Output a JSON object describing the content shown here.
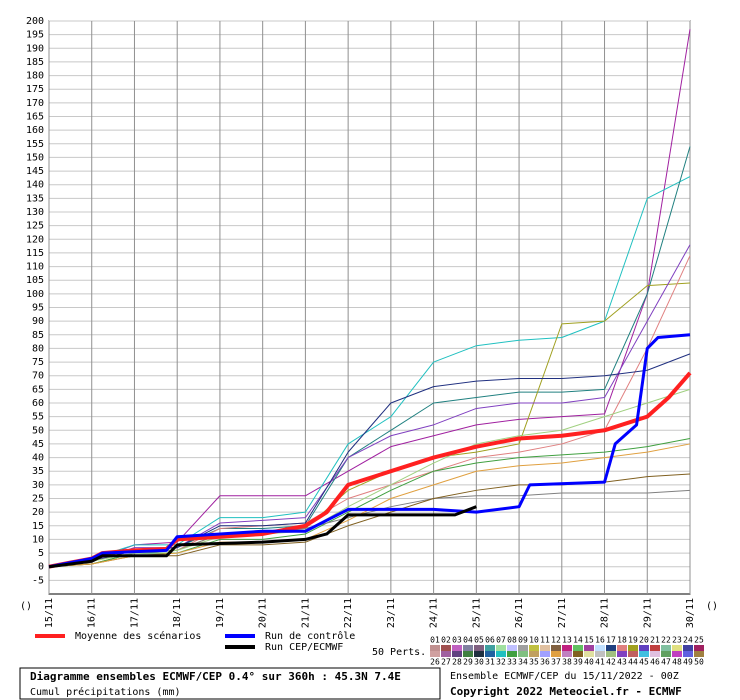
{
  "chart_data": {
    "type": "line",
    "title": "Diagramme ensembles ECMWF/CEP 0.4° sur 360h : 45.3N 7.4E",
    "subtitle": "Cumul précipitations (mm)",
    "run_info": "Ensemble ECMWF/CEP du 15/11/2022 - 00Z",
    "copyright": "Copyright 2022 Meteociel.fr - ECMWF",
    "side_label": "()",
    "perturbations_label": "50 Perts.",
    "xlim": [
      0,
      360
    ],
    "xticks": [
      {
        "value": 0,
        "label": "15/11"
      },
      {
        "value": 24,
        "label": "16/11"
      },
      {
        "value": 48,
        "label": "17/11"
      },
      {
        "value": 72,
        "label": "18/11"
      },
      {
        "value": 96,
        "label": "19/11"
      },
      {
        "value": 120,
        "label": "20/11"
      },
      {
        "value": 144,
        "label": "21/11"
      },
      {
        "value": 168,
        "label": "22/11"
      },
      {
        "value": 192,
        "label": "23/11"
      },
      {
        "value": 216,
        "label": "24/11"
      },
      {
        "value": 240,
        "label": "25/11"
      },
      {
        "value": 264,
        "label": "26/11"
      },
      {
        "value": 288,
        "label": "27/11"
      },
      {
        "value": 312,
        "label": "28/11"
      },
      {
        "value": 336,
        "label": "29/11"
      },
      {
        "value": 360,
        "label": "30/11"
      }
    ],
    "ylim": [
      -10,
      200
    ],
    "yticks": [
      -5,
      0,
      5,
      10,
      15,
      20,
      25,
      30,
      35,
      40,
      45,
      50,
      55,
      60,
      65,
      70,
      75,
      80,
      85,
      90,
      95,
      100,
      105,
      110,
      115,
      120,
      125,
      130,
      135,
      140,
      145,
      150,
      155,
      160,
      165,
      170,
      175,
      180,
      185,
      190,
      195,
      200
    ],
    "grid": true,
    "series": [
      {
        "name": "Moyenne des scénarios",
        "color": "#ff2020",
        "width": 4,
        "x": [
          0,
          12,
          24,
          30,
          48,
          66,
          72,
          96,
          120,
          144,
          156,
          168,
          192,
          216,
          240,
          264,
          288,
          312,
          336,
          348,
          360
        ],
        "values": [
          0,
          1.5,
          3,
          5,
          6,
          6.5,
          10,
          11,
          12,
          15,
          20,
          30,
          35,
          40,
          44,
          47,
          48,
          50,
          55,
          62,
          71
        ]
      },
      {
        "name": "Run de contrôle",
        "color": "#0000ff",
        "width": 3,
        "x": [
          0,
          24,
          30,
          66,
          72,
          120,
          144,
          156,
          168,
          216,
          240,
          264,
          270,
          312,
          318,
          330,
          336,
          342,
          360
        ],
        "values": [
          0,
          3,
          5,
          6,
          11,
          13,
          13,
          17,
          21,
          21,
          20,
          22,
          30,
          31,
          45,
          52,
          80,
          84,
          85
        ]
      },
      {
        "name": "Run CEP/ECMWF",
        "color": "#000000",
        "width": 3,
        "x": [
          0,
          24,
          30,
          66,
          72,
          120,
          144,
          156,
          168,
          228,
          240
        ],
        "values": [
          0,
          2,
          4,
          4,
          8,
          9,
          10,
          12,
          19,
          19,
          22
        ]
      }
    ],
    "perturbations": [
      {
        "color": "#a020a0",
        "values": [
          0,
          2,
          8,
          9,
          26,
          26,
          26,
          35,
          44,
          48,
          52,
          54,
          55,
          56,
          100,
          197
        ]
      },
      {
        "color": "#20c0c0",
        "values": [
          0,
          3,
          8,
          8,
          18,
          18,
          20,
          45,
          55,
          75,
          81,
          83,
          84,
          90,
          135,
          143
        ]
      },
      {
        "color": "#208080",
        "values": [
          0,
          2,
          6,
          7,
          14,
          14,
          15,
          40,
          50,
          60,
          62,
          64,
          64,
          65,
          100,
          154
        ]
      },
      {
        "color": "#a0a020",
        "values": [
          0,
          1,
          5,
          6,
          12,
          12,
          14,
          28,
          35,
          40,
          42,
          45,
          89,
          90,
          103,
          104
        ]
      },
      {
        "color": "#e08080",
        "values": [
          0,
          2,
          6,
          6,
          14,
          15,
          16,
          25,
          30,
          35,
          40,
          42,
          45,
          50,
          80,
          114
        ]
      },
      {
        "color": "#8040c0",
        "values": [
          0,
          2,
          7,
          7,
          16,
          17,
          18,
          40,
          48,
          52,
          58,
          60,
          60,
          62,
          90,
          118
        ]
      },
      {
        "color": "#40a040",
        "values": [
          0,
          1,
          5,
          5,
          10,
          10,
          12,
          20,
          28,
          35,
          38,
          40,
          41,
          42,
          44,
          47
        ]
      },
      {
        "color": "#808080",
        "values": [
          0,
          2,
          6,
          6,
          12,
          13,
          14,
          18,
          22,
          25,
          26,
          26,
          27,
          27,
          27,
          28
        ]
      },
      {
        "color": "#203080",
        "values": [
          0,
          2,
          6,
          7,
          15,
          15,
          16,
          42,
          60,
          66,
          68,
          69,
          69,
          70,
          72,
          78
        ]
      },
      {
        "color": "#806020",
        "values": [
          0,
          1,
          4,
          4,
          8,
          8,
          9,
          15,
          20,
          25,
          28,
          30,
          30,
          31,
          33,
          34
        ]
      },
      {
        "color": "#a0d080",
        "values": [
          0,
          2,
          5,
          6,
          11,
          12,
          13,
          22,
          30,
          38,
          45,
          48,
          50,
          55,
          60,
          65
        ]
      },
      {
        "color": "#e0a040",
        "values": [
          0,
          1,
          4,
          5,
          9,
          9,
          10,
          17,
          25,
          30,
          35,
          37,
          38,
          40,
          42,
          45
        ]
      }
    ],
    "members": [
      {
        "label": "01",
        "color": "#c09090"
      },
      {
        "label": "02",
        "color": "#a05050"
      },
      {
        "label": "03",
        "color": "#c060c0"
      },
      {
        "label": "04",
        "color": "#8080a0"
      },
      {
        "label": "05",
        "color": "#806080"
      },
      {
        "label": "06",
        "color": "#40a0a0"
      },
      {
        "label": "07",
        "color": "#a0e0a0"
      },
      {
        "label": "08",
        "color": "#c0c0ff"
      },
      {
        "label": "09",
        "color": "#a0a0a0"
      },
      {
        "label": "10",
        "color": "#c0c040"
      },
      {
        "label": "11",
        "color": "#e0c0a0"
      },
      {
        "label": "12",
        "color": "#806040"
      },
      {
        "label": "13",
        "color": "#c02080"
      },
      {
        "label": "14",
        "color": "#60c060"
      },
      {
        "label": "15",
        "color": "#a040a0"
      },
      {
        "label": "16",
        "color": "#c0e0ff"
      },
      {
        "label": "17",
        "color": "#204080"
      },
      {
        "label": "18",
        "color": "#e08080"
      },
      {
        "label": "19",
        "color": "#a0a020"
      },
      {
        "label": "20",
        "color": "#6040c0"
      },
      {
        "label": "21",
        "color": "#c04040"
      },
      {
        "label": "22",
        "color": "#80c0a0"
      },
      {
        "label": "23",
        "color": "#e0e080"
      },
      {
        "label": "24",
        "color": "#4040a0"
      },
      {
        "label": "25",
        "color": "#a02060"
      },
      {
        "label": "26",
        "color": "#d0a0a0"
      },
      {
        "label": "27",
        "color": "#a060a0"
      },
      {
        "label": "28",
        "color": "#604080"
      },
      {
        "label": "29",
        "color": "#408040"
      },
      {
        "label": "30",
        "color": "#203040"
      },
      {
        "label": "31",
        "color": "#2060a0"
      },
      {
        "label": "32",
        "color": "#20c0c0"
      },
      {
        "label": "33",
        "color": "#40a040"
      },
      {
        "label": "34",
        "color": "#80c080"
      },
      {
        "label": "35",
        "color": "#c0a060"
      },
      {
        "label": "36",
        "color": "#a0a0ff"
      },
      {
        "label": "37",
        "color": "#e0a040"
      },
      {
        "label": "38",
        "color": "#c080c0"
      },
      {
        "label": "39",
        "color": "#806020"
      },
      {
        "label": "40",
        "color": "#e0e0a0"
      },
      {
        "label": "41",
        "color": "#c0c0c0"
      },
      {
        "label": "42",
        "color": "#a0c080"
      },
      {
        "label": "43",
        "color": "#8040c0"
      },
      {
        "label": "44",
        "color": "#c06060"
      },
      {
        "label": "45",
        "color": "#40c0e0"
      },
      {
        "label": "46",
        "color": "#e0c0e0"
      },
      {
        "label": "47",
        "color": "#60a060"
      },
      {
        "label": "48",
        "color": "#c040c0"
      },
      {
        "label": "49",
        "color": "#6060e0"
      },
      {
        "label": "50",
        "color": "#a08040"
      }
    ]
  }
}
